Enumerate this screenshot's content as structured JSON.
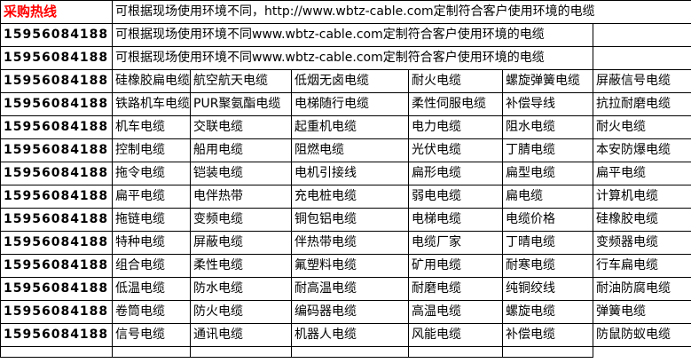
{
  "colors": {
    "accent": "#ff0000",
    "border": "#000000",
    "background": "#ffffff",
    "text": "#000000"
  },
  "table": {
    "hotline_label": "采购热线",
    "phone": "15956084188",
    "notice_row_top": "可根据现场使用环境不同，http://www.wbtz-cable.com定制符合客户使用环境的电缆",
    "notice_row_repeat": "可根据现场使用环境不同www.wbtz-cable.com定制符合客户使用环境的电缆",
    "cable_rows": [
      [
        "硅橡胶扁电缆",
        "航空航天电缆",
        "低烟无卤电缆",
        "耐火电缆",
        "螺旋弹簧电缆",
        "屏蔽信号电缆"
      ],
      [
        "铁路机车电缆",
        "PUR聚氨酯电缆",
        "电梯随行电缆",
        "柔性伺服电缆",
        "补偿导线",
        "抗拉耐磨电缆"
      ],
      [
        "机车电缆",
        "交联电缆",
        "起重机电缆",
        "电力电缆",
        "阻水电缆",
        "耐火电缆"
      ],
      [
        "控制电缆",
        "船用电缆",
        "阻燃电缆",
        "光伏电缆",
        "丁腈电缆",
        "本安防爆电缆"
      ],
      [
        "拖令电缆",
        "铠装电缆",
        "电机引接线",
        "扁形电缆",
        "扁型电缆",
        "扁平电缆"
      ],
      [
        "扁平电缆",
        "电伴热带",
        "充电桩电缆",
        "弱电电缆",
        "扁电缆",
        "计算机电缆"
      ],
      [
        "拖链电缆",
        "变频电缆",
        "铜包铝电缆",
        "电梯电缆",
        "电缆价格",
        "硅橡胶电缆"
      ],
      [
        "特种电缆",
        "屏蔽电缆",
        "伴热带电缆",
        "电缆厂家",
        "丁晴电缆",
        "变频器电缆"
      ],
      [
        "组合电缆",
        "柔性电缆",
        "氟塑料电缆",
        "矿用电缆",
        "耐寒电缆",
        "行车扁电缆"
      ],
      [
        "低温电缆",
        "防水电缆",
        "耐高温电缆",
        "耐磨电缆",
        "纯铜绞线",
        "耐油防腐电缆"
      ],
      [
        "卷筒电缆",
        "防火电缆",
        "编码器电缆",
        "高温电缆",
        "螺旋电缆",
        "弹簧电缆"
      ],
      [
        "信号电缆",
        "通讯电缆",
        "机器人电缆",
        "风能电缆",
        "补偿电缆",
        "防鼠防蚁电缆"
      ]
    ]
  }
}
